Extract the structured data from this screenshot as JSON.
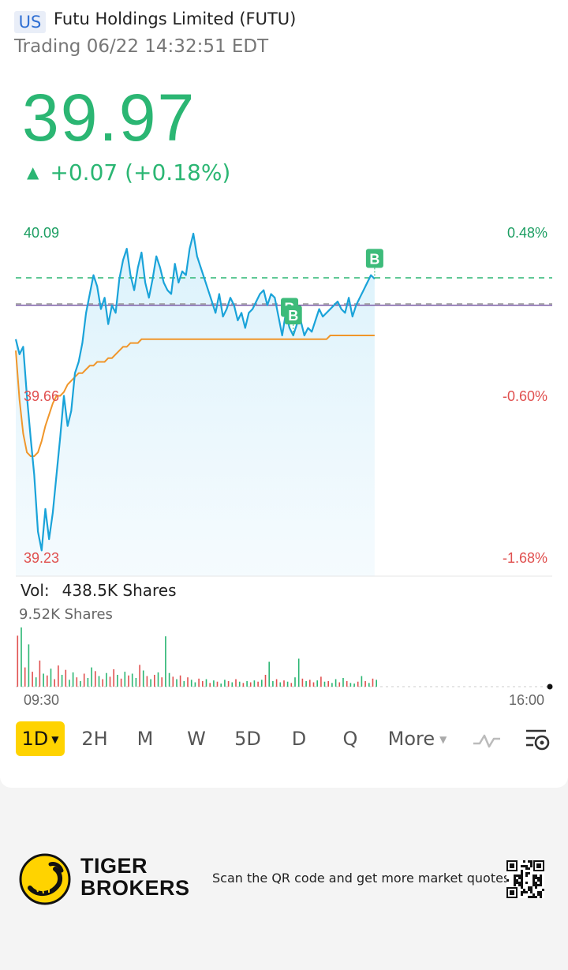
{
  "header": {
    "market": "US",
    "name": "Futu Holdings Limited (FUTU)",
    "status": "Trading 06/22 14:32:51 EDT"
  },
  "quote": {
    "price": "39.97",
    "change_arrow": "▲",
    "change": "+0.07 (+0.18%)"
  },
  "chart_axis": {
    "price_high": "40.09",
    "price_mid": "39.66",
    "price_low": "39.23",
    "pct_high": "0.48%",
    "pct_mid": "-0.60%",
    "pct_low": "-1.68%"
  },
  "volume": {
    "label": "Vol:",
    "total": "438.5K Shares",
    "max": "9.52K Shares"
  },
  "time_axis": {
    "start": "09:30",
    "end": "16:00"
  },
  "periods": {
    "selected": "1D",
    "items": [
      "2H",
      "M",
      "W",
      "5D",
      "D",
      "Q"
    ],
    "more": "More"
  },
  "footer": {
    "brand_line1": "TIGER",
    "brand_line2": "BROKERS",
    "scan_text": "Scan the QR code and get more market quotes"
  },
  "colors": {
    "up": "#2bb673",
    "down": "#e0504f",
    "price_line": "#1aa3d9",
    "avg_line": "#f0962a",
    "prev_close": "#7a5aa6",
    "active_tab": "#ffd300"
  },
  "chart_data": {
    "type": "line",
    "title": "",
    "xlabel": "",
    "ylabel": "",
    "ylim": [
      39.23,
      40.09
    ],
    "x_range": [
      "09:30",
      "16:00"
    ],
    "prev_close": 39.9,
    "series": [
      {
        "values": [
          39.81,
          39.77,
          39.79,
          39.66,
          39.55,
          39.45,
          39.3,
          39.25,
          39.36,
          39.28,
          39.35,
          39.45,
          39.55,
          39.66,
          39.58,
          39.62,
          39.72,
          39.75,
          39.8,
          39.88,
          39.93,
          39.98,
          39.95,
          39.89,
          39.92,
          39.85,
          39.9,
          39.88,
          39.97,
          40.02,
          40.05,
          39.98,
          39.94,
          40.0,
          40.04,
          39.96,
          39.92,
          39.97,
          40.03,
          40.0,
          39.96,
          39.94,
          39.93,
          40.01,
          39.96,
          39.99,
          39.98,
          40.05,
          40.09,
          40.03,
          40.0,
          39.97,
          39.94,
          39.91,
          39.88,
          39.93,
          39.87,
          39.89,
          39.92,
          39.9,
          39.86,
          39.88,
          39.84,
          39.88,
          39.89,
          39.91,
          39.93,
          39.94,
          39.9,
          39.93,
          39.92,
          39.87,
          39.82,
          39.88,
          39.84,
          39.82,
          39.85,
          39.86,
          39.82,
          39.84,
          39.83,
          39.86,
          39.89,
          39.87,
          39.88,
          39.89,
          39.9,
          39.91,
          39.89,
          39.88,
          39.92,
          39.87,
          39.9,
          39.92,
          39.94,
          39.96,
          39.98,
          39.97
        ]
      },
      {
        "name": "",
        "values": [
          39.78,
          39.65,
          39.56,
          39.51,
          39.5,
          39.5,
          39.51,
          39.54,
          39.58,
          39.61,
          39.64,
          39.66,
          39.66,
          39.67,
          39.69,
          39.7,
          39.71,
          39.72,
          39.72,
          39.73,
          39.74,
          39.74,
          39.75,
          39.75,
          39.75,
          39.76,
          39.76,
          39.77,
          39.78,
          39.79,
          39.79,
          39.8,
          39.8,
          39.8,
          39.81,
          39.81,
          39.81,
          39.81,
          39.81,
          39.81,
          39.81,
          39.81,
          39.81,
          39.81,
          39.81,
          39.81,
          39.81,
          39.81,
          39.81,
          39.81,
          39.81,
          39.81,
          39.81,
          39.81,
          39.81,
          39.81,
          39.81,
          39.81,
          39.81,
          39.81,
          39.81,
          39.81,
          39.81,
          39.81,
          39.81,
          39.81,
          39.81,
          39.81,
          39.81,
          39.81,
          39.81,
          39.81,
          39.81,
          39.81,
          39.81,
          39.81,
          39.81,
          39.81,
          39.81,
          39.81,
          39.81,
          39.81,
          39.81,
          39.81,
          39.81,
          39.82,
          39.82,
          39.82,
          39.82,
          39.82,
          39.82,
          39.82,
          39.82,
          39.82,
          39.82,
          39.82,
          39.82,
          39.82
        ]
      }
    ],
    "markers": [
      {
        "label": "B",
        "index": 74
      },
      {
        "label": "B",
        "index": 75
      },
      {
        "label": "B",
        "index": 97
      }
    ],
    "volume_max": 9520,
    "volume": [
      8200,
      9520,
      3100,
      6800,
      2400,
      1500,
      4200,
      2100,
      1800,
      2900,
      1200,
      3400,
      1900,
      2700,
      1100,
      2300,
      1500,
      900,
      2100,
      1400,
      3100,
      2500,
      1700,
      1200,
      2200,
      1600,
      2800,
      1900,
      1300,
      2400,
      1800,
      2100,
      1400,
      3500,
      2600,
      1700,
      1200,
      1900,
      2300,
      1500,
      8100,
      2200,
      1600,
      1200,
      1800,
      900,
      1500,
      1100,
      700,
      1300,
      900,
      1200,
      600,
      1000,
      800,
      500,
      1100,
      900,
      700,
      1200,
      800,
      600,
      900,
      700,
      1000,
      800,
      1100,
      1900,
      4000,
      900,
      1200,
      700,
      1000,
      800,
      600,
      1500,
      4500,
      1300,
      900,
      1100,
      700,
      1000,
      1600,
      800,
      900,
      600,
      1200,
      700,
      1400,
      900,
      600,
      500,
      800,
      1700,
      900,
      600,
      1300,
      1100
    ],
    "volume_up": [
      false,
      true,
      false,
      true,
      false,
      true,
      false,
      true,
      false,
      true,
      false,
      false,
      true,
      false,
      true,
      true,
      false,
      true,
      false,
      true,
      true,
      false,
      true,
      false,
      true,
      false,
      false,
      true,
      false,
      true,
      false,
      true,
      true,
      false,
      true,
      false,
      true,
      false,
      true,
      false,
      true,
      true,
      false,
      true,
      false,
      true,
      false,
      true,
      true,
      false,
      false,
      true,
      false,
      true,
      false,
      true,
      true,
      false,
      true,
      false,
      true,
      false,
      true,
      false,
      true,
      false,
      true,
      false,
      true,
      true,
      false,
      true,
      false,
      true,
      false,
      true,
      true,
      false,
      true,
      false,
      false,
      true,
      false,
      true,
      false,
      true,
      true,
      false,
      true,
      false,
      true,
      true,
      false,
      true,
      false,
      true,
      false,
      true
    ]
  }
}
